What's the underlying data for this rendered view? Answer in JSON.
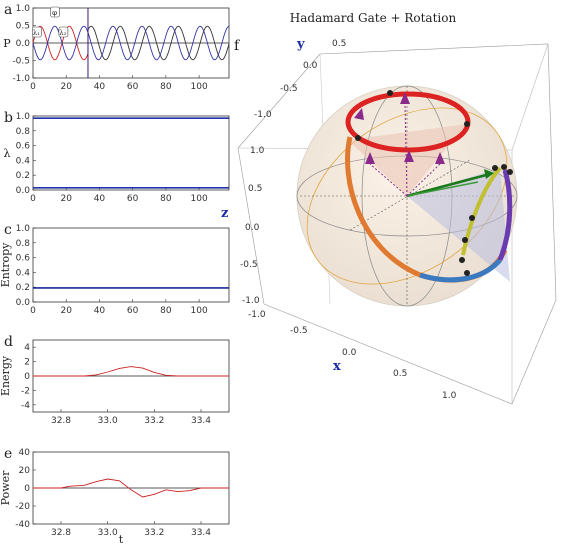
{
  "panels": {
    "a": {
      "letter": "a",
      "ylabel": "P",
      "type": "line",
      "xlim": [
        0,
        118
      ],
      "ylim": [
        -1.0,
        1.0
      ],
      "xticks": [
        0,
        20,
        40,
        60,
        80,
        100
      ],
      "yticks": [
        -1.0,
        -0.5,
        0.0,
        0.5,
        1.0
      ],
      "series": [
        {
          "color": "#cc2222",
          "amplitude": 0.48,
          "period": 17.5,
          "phase": 0.0,
          "x_range": [
            0,
            33
          ]
        },
        {
          "color": "#333333",
          "amplitude": 0.48,
          "period": 17.5,
          "phase": 4.375,
          "x_range": [
            33,
            118
          ]
        },
        {
          "color": "#3333aa",
          "amplitude": 0.48,
          "period": 17.5,
          "phase": 8.75,
          "x_range": [
            0,
            118
          ]
        }
      ],
      "vline_x": 33.1,
      "annotations": [
        "λ₁",
        "λ₂",
        "φ"
      ]
    },
    "b": {
      "letter": "b",
      "ylabel": "λ",
      "type": "line",
      "xlim": [
        0,
        118
      ],
      "ylim": [
        0,
        1.0
      ],
      "xticks": [
        0,
        20,
        40,
        60,
        80,
        100
      ],
      "yticks": [
        0.0,
        0.2,
        0.4,
        0.6,
        0.8,
        1.0
      ],
      "series": [
        {
          "color": "#2233aa",
          "value": 0.97
        },
        {
          "color": "#2233aa",
          "value": 0.03
        }
      ]
    },
    "c": {
      "letter": "c",
      "ylabel": "Entropy",
      "type": "line",
      "xlim": [
        0,
        118
      ],
      "ylim": [
        0,
        1.0
      ],
      "xticks": [
        0,
        20,
        40,
        60,
        80,
        100
      ],
      "yticks": [
        0.0,
        0.2,
        0.4,
        0.6,
        0.8,
        1.0
      ],
      "series": [
        {
          "color": "#1a2a99",
          "value": 0.19
        }
      ]
    },
    "d": {
      "letter": "d",
      "ylabel": "Energy",
      "type": "line",
      "xlim": [
        32.68,
        33.52
      ],
      "ylim": [
        -5,
        5
      ],
      "xticks": [
        32.8,
        33.0,
        33.2,
        33.4
      ],
      "xtick_labels": [
        "32.8",
        "33.0",
        "33.2",
        "33.4"
      ],
      "yticks": [
        -4,
        -2,
        0,
        2,
        4
      ],
      "series": [
        {
          "color": "#cc2222",
          "x": [
            32.68,
            32.9,
            32.95,
            33.0,
            33.05,
            33.1,
            33.15,
            33.2,
            33.25,
            33.3,
            33.52
          ],
          "y": [
            0,
            0,
            0.15,
            0.55,
            1.05,
            1.3,
            1.1,
            0.5,
            0.1,
            0,
            0
          ]
        }
      ]
    },
    "e": {
      "letter": "e",
      "ylabel": "Power",
      "xlabel": "t",
      "type": "line",
      "xlim": [
        32.68,
        33.52
      ],
      "ylim": [
        -40,
        40
      ],
      "xticks": [
        32.8,
        33.0,
        33.2,
        33.4
      ],
      "xtick_labels": [
        "32.8",
        "33.0",
        "33.2",
        "33.4"
      ],
      "yticks": [
        -40,
        -20,
        0,
        20,
        40
      ],
      "series": [
        {
          "color": "#cc2222",
          "x": [
            32.68,
            32.8,
            32.84,
            32.9,
            32.95,
            33.0,
            33.05,
            33.1,
            33.15,
            33.2,
            33.25,
            33.3,
            33.35,
            33.4,
            33.52
          ],
          "y": [
            0,
            0,
            2,
            3,
            7,
            10,
            8,
            -2,
            -10,
            -7,
            -2,
            -4,
            -3,
            0,
            0
          ]
        }
      ]
    }
  },
  "bloch": {
    "letter": "f",
    "title": "Hadamard Gate + Rotation",
    "axis_x": "x",
    "axis_y": "y",
    "axis_z": "z",
    "ticks_x": [
      "-1.0",
      "-0.5",
      "0.0",
      "0.5",
      "1.0"
    ],
    "ticks_y": [
      "-1.0",
      "-0.5",
      "0.0",
      "0.5"
    ],
    "ticks_z": [
      "-1.0",
      "-0.5",
      "0.0",
      "0.5",
      "1.0"
    ],
    "colors": {
      "ring": "#dd2222",
      "arrow": "#1a7a1a",
      "markers": "#8a2a8a",
      "axis_label": "#1a2aa8"
    }
  }
}
